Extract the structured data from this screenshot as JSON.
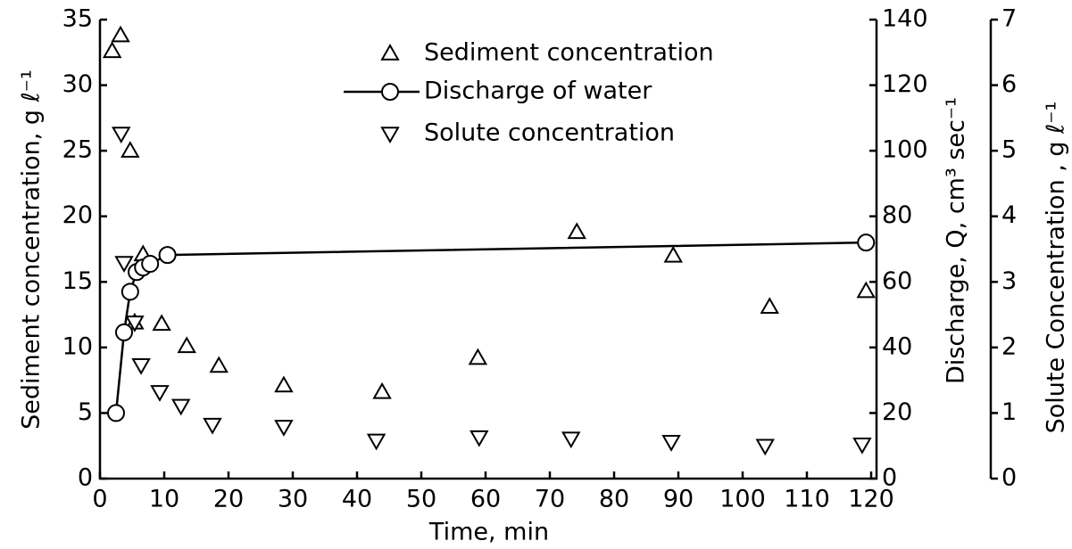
{
  "chart_data": {
    "type": "scatter",
    "xlabel": "Time, min",
    "ylabel": "Sediment concentration, g ℓ⁻¹",
    "y2label": "Discharge, Q, cm³ sec⁻¹",
    "y3label": "Solute Concentration , g ℓ⁻¹",
    "xlim": [
      0,
      120
    ],
    "xticks": [
      0,
      10,
      20,
      30,
      40,
      50,
      60,
      70,
      80,
      90,
      100,
      110,
      120
    ],
    "ylim": [
      0,
      35
    ],
    "yticks": [
      0,
      5,
      10,
      15,
      20,
      25,
      30,
      35
    ],
    "y2lim": [
      0,
      140
    ],
    "y2ticks": [
      0,
      20,
      40,
      60,
      80,
      100,
      120,
      140
    ],
    "y3lim": [
      0,
      7
    ],
    "y3ticks": [
      0,
      1,
      2,
      3,
      4,
      5,
      6,
      7
    ],
    "series": [
      {
        "name": "Sediment concentration",
        "color": "#000000",
        "marker": "triangle-up",
        "axis": "y",
        "x": [
          1.9,
          3.2,
          4.7,
          5.4,
          6.7,
          9.6,
          13.5,
          18.5,
          28.6,
          43.9,
          58.8,
          74.2,
          89.2,
          104.2,
          119.2
        ],
        "values": [
          32.6,
          33.8,
          25.0,
          11.9,
          17.1,
          11.8,
          10.1,
          8.6,
          7.1,
          6.6,
          9.2,
          18.8,
          17.0,
          13.1,
          14.3
        ]
      },
      {
        "name": "Discharge of water",
        "color": "#000000",
        "marker": "circle",
        "line": true,
        "axis": "y2",
        "x": [
          2.5,
          3.75,
          4.7,
          5.7,
          6.7,
          7.8,
          10.5,
          119.2
        ],
        "values": [
          20,
          44.6,
          57,
          63,
          64.4,
          65.5,
          68.2,
          72
        ]
      },
      {
        "name": "Solute concentration",
        "color": "#000000",
        "marker": "triangle-down",
        "axis": "y3",
        "x": [
          3.3,
          3.75,
          5.4,
          6.4,
          9.3,
          12.6,
          17.5,
          28.6,
          43,
          59,
          73.3,
          88.9,
          103.5,
          118.6
        ],
        "values": [
          5.26,
          3.29,
          2.38,
          1.73,
          1.32,
          1.11,
          0.82,
          0.79,
          0.58,
          0.63,
          0.61,
          0.56,
          0.5,
          0.52
        ]
      }
    ]
  }
}
